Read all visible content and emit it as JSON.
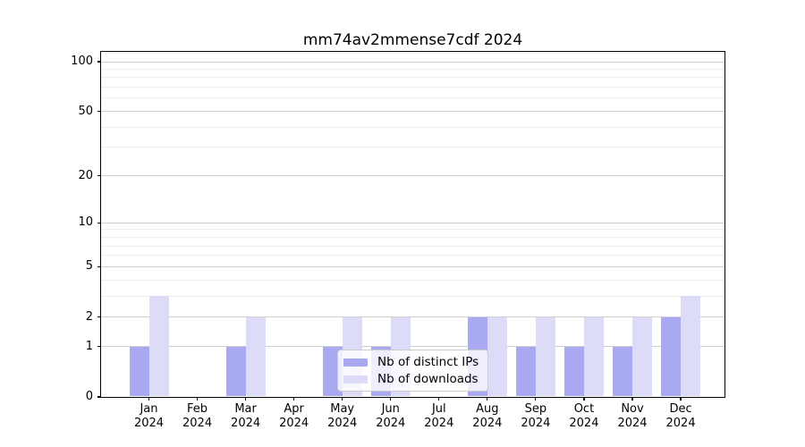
{
  "chart_data": {
    "type": "bar",
    "title": "mm74av2mmense7cdf 2024",
    "categories": [
      "Jan 2024",
      "Feb 2024",
      "Mar 2024",
      "Apr 2024",
      "May 2024",
      "Jun 2024",
      "Jul 2024",
      "Aug 2024",
      "Sep 2024",
      "Oct 2024",
      "Nov 2024",
      "Dec 2024"
    ],
    "series": [
      {
        "name": "Nb of distinct IPs",
        "color": "#a9a9f2",
        "values": [
          1,
          0,
          1,
          0,
          1,
          1,
          0,
          2,
          1,
          1,
          1,
          2
        ]
      },
      {
        "name": "Nb of downloads",
        "color": "#dcdcf8",
        "values": [
          3,
          0,
          2,
          0,
          2,
          2,
          0,
          2,
          2,
          2,
          2,
          3
        ]
      }
    ],
    "yscale": "log1p",
    "yticks": [
      0,
      1,
      2,
      5,
      10,
      20,
      50,
      100
    ],
    "minor_gridlines": [
      3,
      4,
      6,
      7,
      8,
      9,
      30,
      40,
      60,
      70,
      80,
      90
    ],
    "ylim": [
      0,
      115
    ],
    "grid": true,
    "legend_position": "lower center",
    "bar_layout": "grouped"
  },
  "colors": {
    "major_grid": "#cfcfcf",
    "minor_grid": "#ededed",
    "axis": "#000000",
    "text": "#000000",
    "legend_border": "#cccccc",
    "legend_background": "rgba(255,255,255,0.8)"
  }
}
